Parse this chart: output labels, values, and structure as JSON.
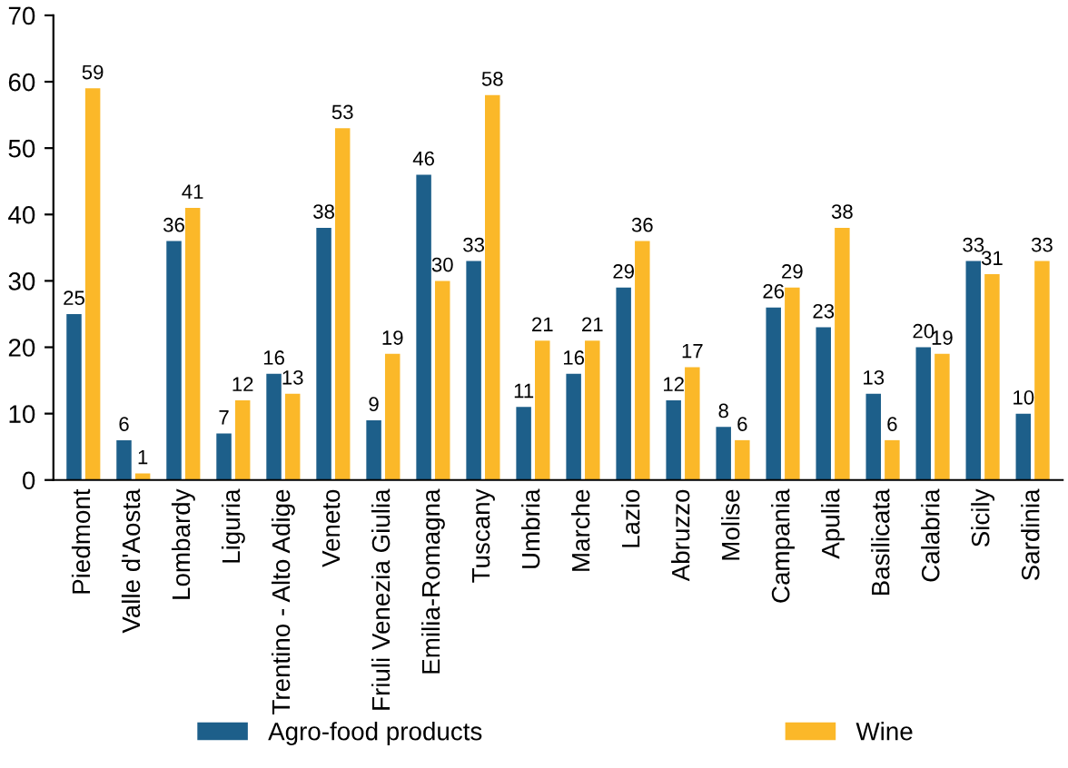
{
  "chart_data": {
    "type": "bar",
    "categories": [
      "Piedmont",
      "Valle d'Aosta",
      "Lombardy",
      "Liguria",
      "Trentino - Alto Adige",
      "Veneto",
      "Friuli Venezia Giulia",
      "Emilia-Romagna",
      "Tuscany",
      "Umbria",
      "Marche",
      "Lazio",
      "Abruzzo",
      "Molise",
      "Campania",
      "Apulia",
      "Basilicata",
      "Calabria",
      "Sicily",
      "Sardinia"
    ],
    "series": [
      {
        "name": "Agro-food products",
        "color": "#1d5f8a",
        "values": [
          25,
          6,
          36,
          7,
          16,
          38,
          9,
          46,
          33,
          11,
          16,
          29,
          12,
          8,
          26,
          23,
          13,
          20,
          33,
          10
        ]
      },
      {
        "name": "Wine",
        "color": "#fbb829",
        "values": [
          59,
          1,
          41,
          12,
          13,
          53,
          19,
          30,
          58,
          21,
          21,
          36,
          17,
          6,
          29,
          38,
          6,
          19,
          31,
          33
        ]
      }
    ],
    "ylim": [
      0,
      70
    ],
    "yticks": [
      0,
      10,
      20,
      30,
      40,
      50,
      60,
      70
    ],
    "data_labels": true,
    "grid": false,
    "legend": "bottom"
  }
}
